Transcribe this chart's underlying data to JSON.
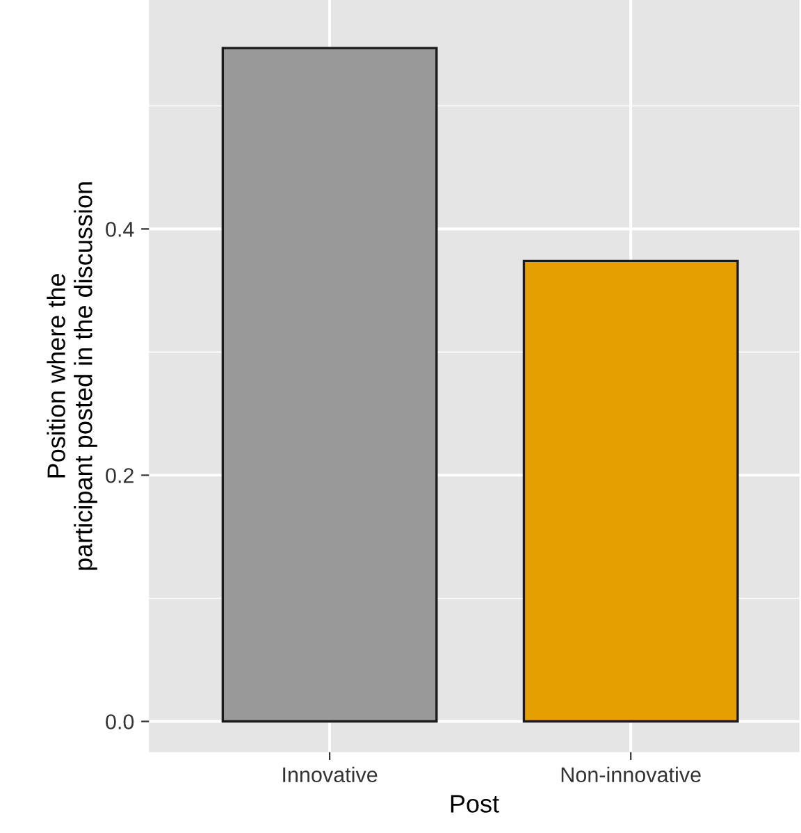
{
  "chart_data": {
    "type": "bar",
    "xlabel": "Post",
    "ylabel": "Position where the\nparticipant posted in the discussion",
    "categories": [
      "Innovative",
      "Non-innovative"
    ],
    "values": [
      0.547,
      0.374
    ],
    "colors": [
      "#999999",
      "#e69f00"
    ],
    "ylim": [
      -0.025,
      0.586
    ],
    "yticks": [
      {
        "value": 0.0,
        "label": "0.0"
      },
      {
        "value": 0.1,
        "label": null
      },
      {
        "value": 0.2,
        "label": "0.2"
      },
      {
        "value": 0.3,
        "label": null
      },
      {
        "value": 0.4,
        "label": "0.4"
      },
      {
        "value": 0.5,
        "label": null
      }
    ],
    "grid": true,
    "legend": false
  }
}
